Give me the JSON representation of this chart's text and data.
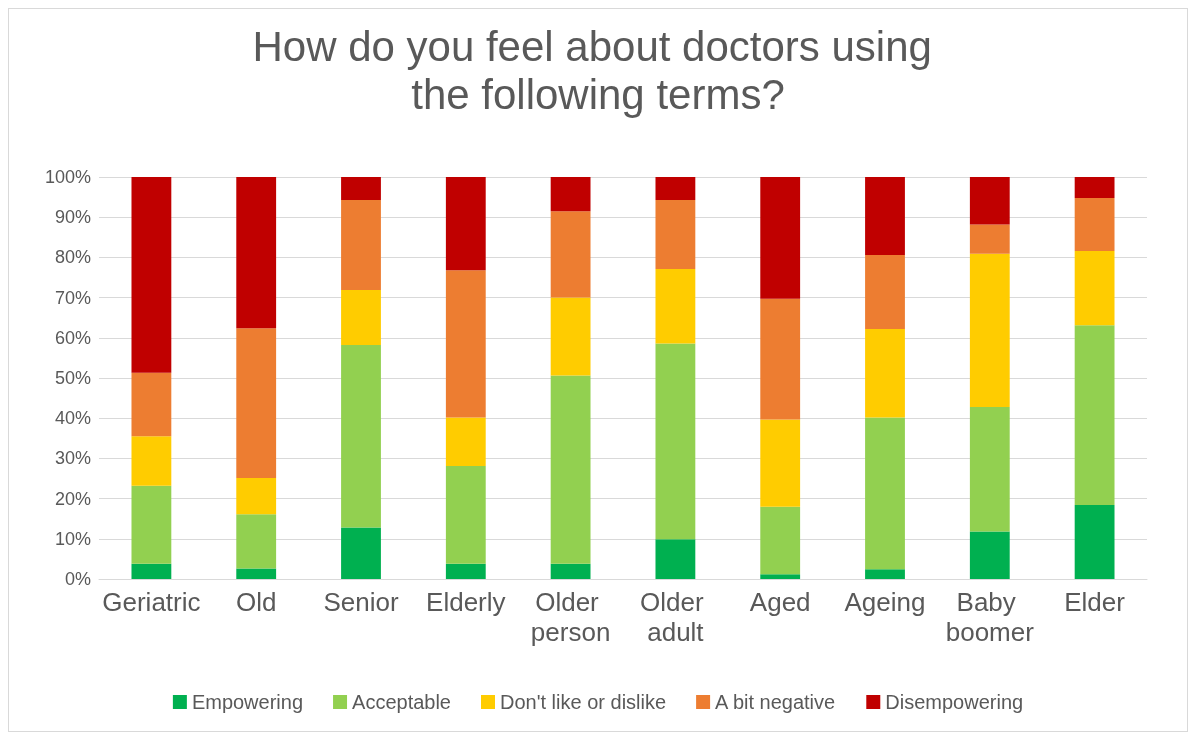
{
  "chart_data": {
    "type": "bar",
    "stacked": true,
    "title": "How do you feel about doctors using the following terms?",
    "categories": [
      "Geriatric",
      "Old",
      "Senior",
      "Elderly",
      "Older person",
      "Older adult",
      "Aged",
      "Ageing",
      "Baby boomer",
      "Elder"
    ],
    "series": [
      {
        "name": "Empowering",
        "color": "#00b050",
        "values": [
          3.8,
          2.6,
          12.8,
          3.8,
          3.8,
          9.9,
          1.2,
          2.4,
          11.8,
          18.4
        ]
      },
      {
        "name": "Acceptable",
        "color": "#92d050",
        "values": [
          19.4,
          13.5,
          45.4,
          24.3,
          46.8,
          48.7,
          16.8,
          37.8,
          31.0,
          44.7
        ]
      },
      {
        "name": "Don't like or dislike",
        "color": "#ffcc00",
        "values": [
          12.3,
          9.0,
          13.7,
          12.1,
          19.4,
          18.5,
          21.7,
          22.0,
          38.1,
          18.5
        ]
      },
      {
        "name": "A bit negative",
        "color": "#ed7d31",
        "values": [
          15.8,
          37.3,
          22.4,
          36.6,
          21.5,
          17.2,
          30.0,
          18.4,
          7.3,
          13.2
        ]
      },
      {
        "name": "Disempowering",
        "color": "#c00000",
        "values": [
          48.7,
          37.6,
          5.7,
          23.2,
          8.5,
          5.7,
          30.3,
          19.4,
          11.8,
          5.2
        ]
      }
    ],
    "ylim": [
      0,
      100
    ],
    "yticks": [
      {
        "value": 0,
        "label": "0%"
      },
      {
        "value": 10,
        "label": "10%"
      },
      {
        "value": 20,
        "label": "20%"
      },
      {
        "value": 30,
        "label": "30%"
      },
      {
        "value": 40,
        "label": "40%"
      },
      {
        "value": 50,
        "label": "50%"
      },
      {
        "value": 60,
        "label": "60%"
      },
      {
        "value": 70,
        "label": "70%"
      },
      {
        "value": 80,
        "label": "80%"
      },
      {
        "value": 90,
        "label": "90%"
      },
      {
        "value": 100,
        "label": "100%"
      }
    ],
    "grid": "y",
    "legend": "bottom"
  }
}
